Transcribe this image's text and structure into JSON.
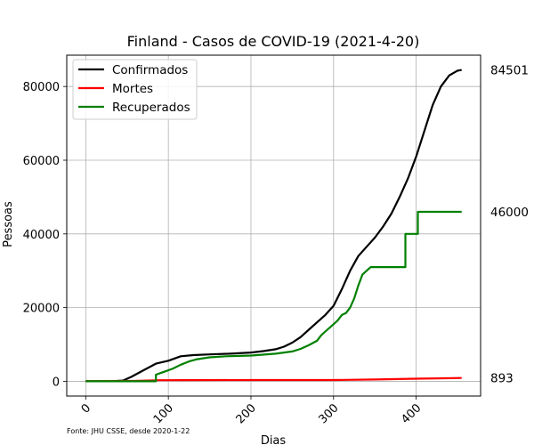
{
  "chart_data": {
    "type": "line",
    "title": "Finland - Casos de COVID-19 (2021-4-20)",
    "xlabel": "Dias",
    "ylabel": "Pessoas",
    "xlim": [
      -23,
      478
    ],
    "ylim": [
      -4000,
      88500
    ],
    "xticks": [
      0,
      100,
      200,
      300,
      400
    ],
    "yticks": [
      0,
      20000,
      40000,
      60000,
      80000
    ],
    "grid": true,
    "legend_position": "top-left",
    "source_note": "Fonte: JHU CSSE, desde 2020-1-22",
    "series": [
      {
        "name": "Confirmados",
        "color": "#000000",
        "x": [
          0,
          30,
          45,
          55,
          70,
          85,
          100,
          115,
          130,
          150,
          175,
          200,
          215,
          230,
          240,
          250,
          260,
          270,
          280,
          290,
          300,
          310,
          320,
          330,
          340,
          350,
          360,
          370,
          380,
          390,
          400,
          410,
          420,
          430,
          440,
          450,
          455
        ],
        "y": [
          0,
          0,
          200,
          1200,
          3000,
          4800,
          5600,
          6800,
          7100,
          7300,
          7500,
          7800,
          8200,
          8700,
          9400,
          10500,
          12000,
          14000,
          16000,
          18000,
          20500,
          25000,
          30000,
          34000,
          36500,
          39000,
          42000,
          45500,
          50000,
          55000,
          61000,
          68000,
          75000,
          80000,
          83000,
          84300,
          84501
        ],
        "end_label": "84501"
      },
      {
        "name": "Mortes",
        "color": "#ff0000",
        "x": [
          0,
          60,
          90,
          120,
          200,
          300,
          350,
          400,
          455
        ],
        "y": [
          0,
          100,
          300,
          330,
          340,
          350,
          500,
          700,
          893
        ],
        "end_label": "893"
      },
      {
        "name": "Recuperados",
        "color": "#008000",
        "x": [
          0,
          85,
          85,
          95,
          105,
          115,
          125,
          135,
          150,
          170,
          200,
          230,
          250,
          260,
          270,
          280,
          285,
          290,
          300,
          305,
          310,
          315,
          320,
          325,
          330,
          335,
          340,
          345,
          350,
          387,
          387,
          402,
          402,
          455
        ],
        "y": [
          0,
          0,
          1800,
          2600,
          3400,
          4500,
          5400,
          6000,
          6500,
          6800,
          7000,
          7500,
          8100,
          8800,
          9800,
          11000,
          12500,
          13500,
          15500,
          16500,
          18000,
          18500,
          20000,
          22500,
          26000,
          29000,
          30000,
          31000,
          31000,
          31000,
          40000,
          40000,
          46000,
          46000
        ],
        "end_label": "46000"
      }
    ]
  }
}
